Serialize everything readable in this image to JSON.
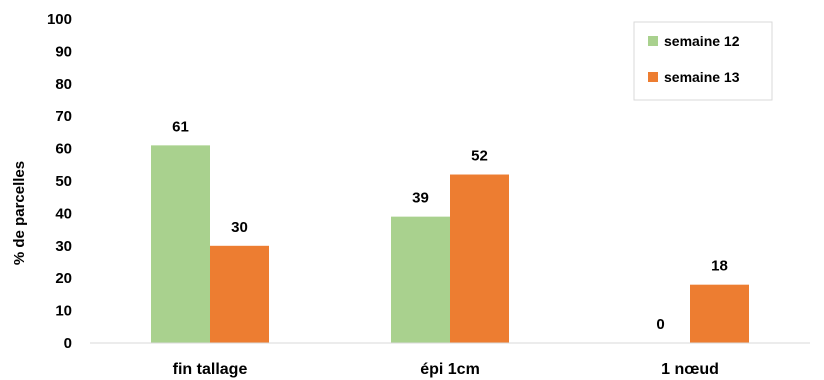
{
  "chart_data": {
    "type": "bar",
    "categories": [
      "fin tallage",
      "épi 1cm",
      "1 nœud"
    ],
    "series": [
      {
        "name": "semaine 12",
        "values": [
          61,
          39,
          0
        ],
        "color": "#a9d18e"
      },
      {
        "name": "semaine 13",
        "values": [
          30,
          52,
          18
        ],
        "color": "#ed7d31"
      }
    ],
    "ylabel": "% de parcelles",
    "xlabel": "",
    "title": "",
    "ylim": [
      0,
      100
    ],
    "yticks": [
      0,
      10,
      20,
      30,
      40,
      50,
      60,
      70,
      80,
      90,
      100
    ],
    "grid": false,
    "legend_position": "top-right"
  }
}
